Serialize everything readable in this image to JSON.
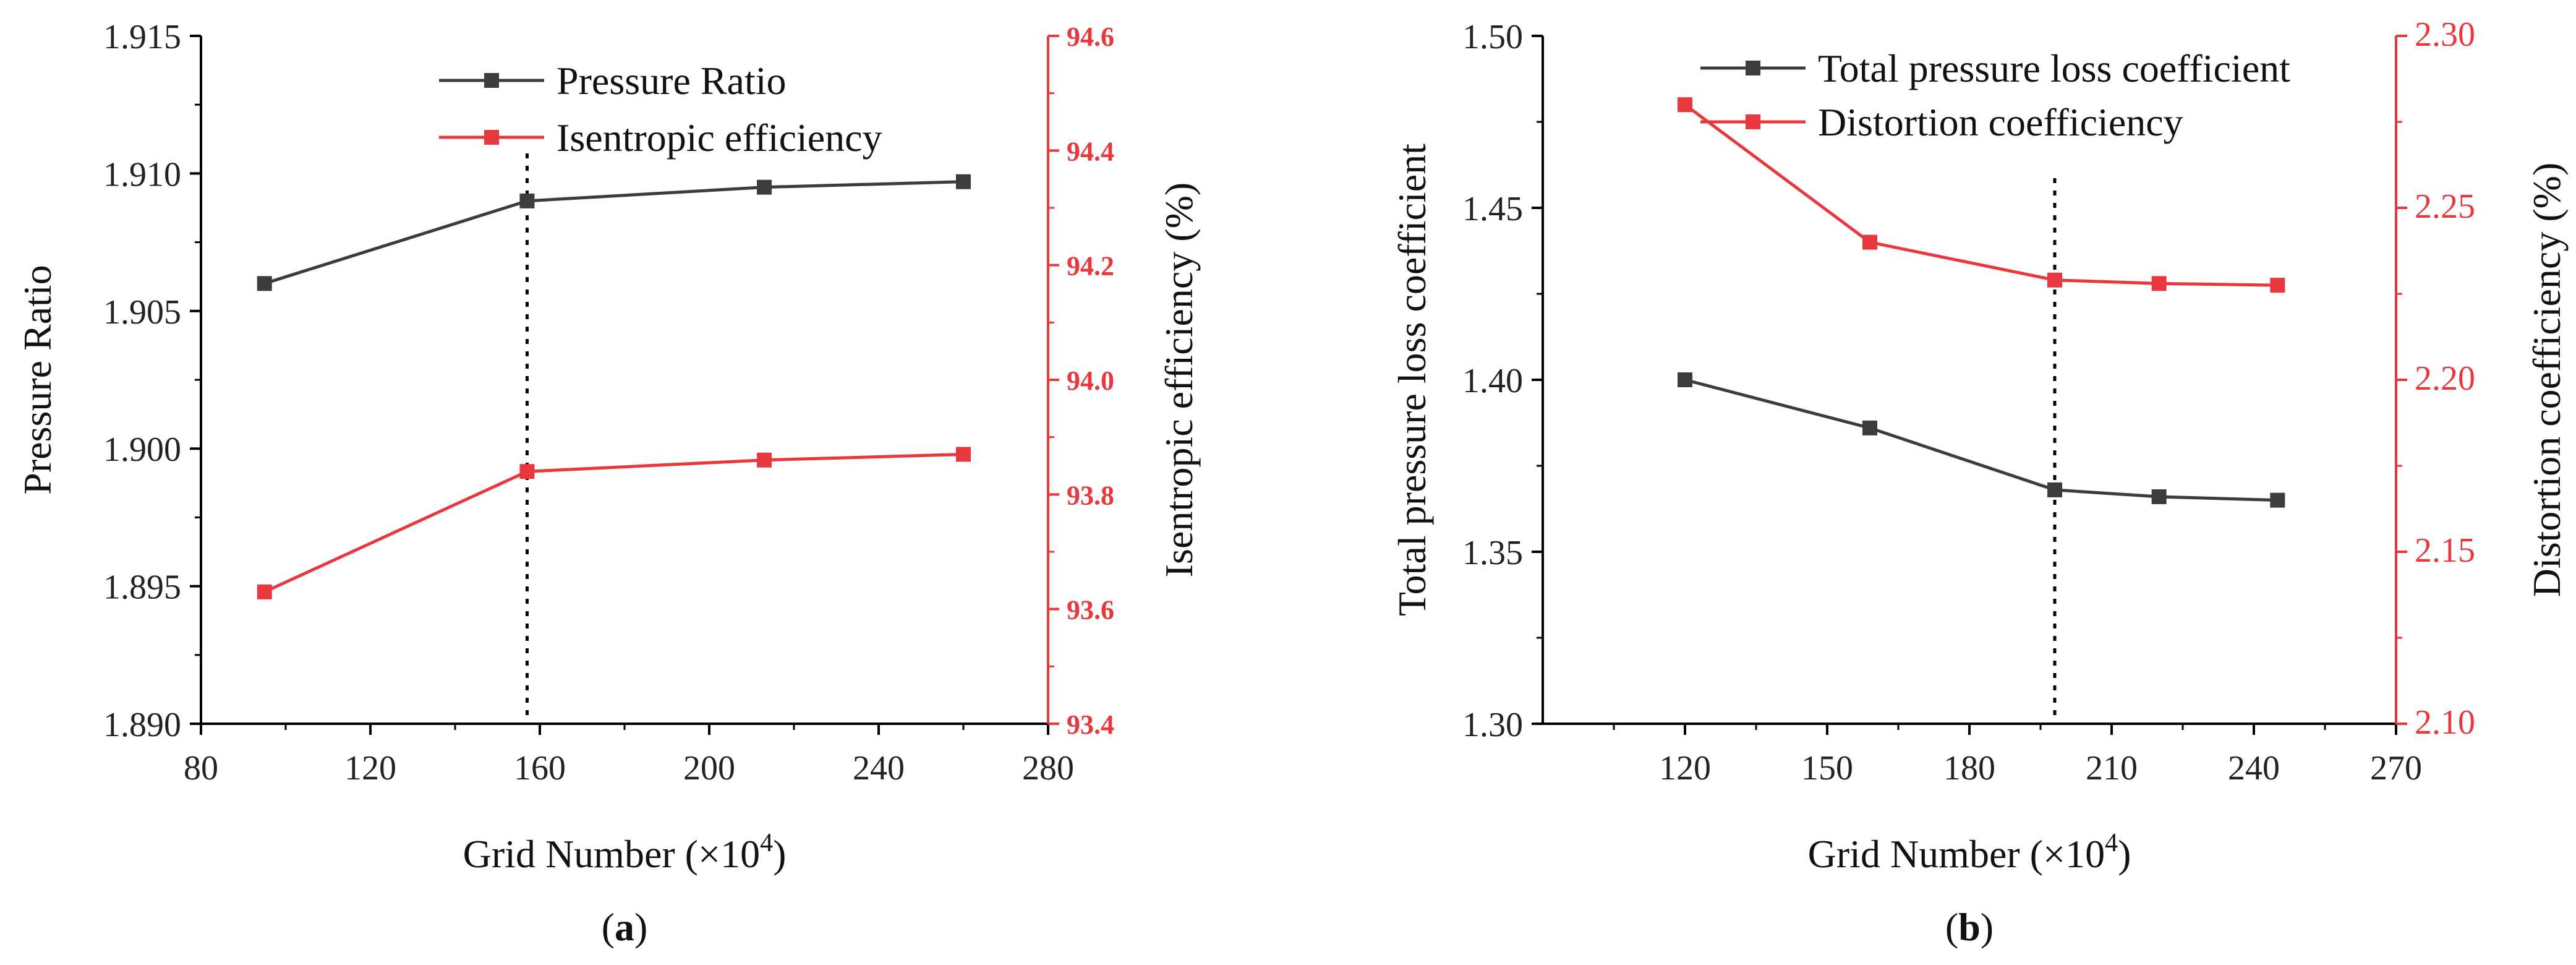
{
  "colors": {
    "black_series": "#3c3c3c",
    "red_series": "#e8383d",
    "axis": "#000000",
    "marker_line": "#000000"
  },
  "chart_data": [
    {
      "type": "line",
      "panel_label": "(a)",
      "panel_letter": "a",
      "xlabel_main": "Grid Number (×10",
      "xlabel_exp": "4",
      "xlabel_close": ")",
      "x_axis": {
        "min": 80,
        "max": 280,
        "ticks": [
          "80",
          "120",
          "160",
          "200",
          "240",
          "280"
        ]
      },
      "y_left": {
        "label": "Pressure Ratio",
        "min": 1.89,
        "max": 1.915,
        "ticks": [
          "1.890",
          "1.895",
          "1.900",
          "1.905",
          "1.910",
          "1.915"
        ]
      },
      "y_right": {
        "label": "Isentropic efficiency (%)",
        "min": 93.4,
        "max": 94.6,
        "ticks": [
          "93.4",
          "93.6",
          "93.8",
          "94.0",
          "94.2",
          "94.4",
          "94.6"
        ]
      },
      "vline_x": 157,
      "legend_position": "top-center",
      "series": [
        {
          "name": "Pressure Ratio",
          "axis": "left",
          "color": "#3c3c3c",
          "x": [
            95,
            157,
            213,
            260
          ],
          "y": [
            1.906,
            1.909,
            1.9095,
            1.9097
          ]
        },
        {
          "name": "Isentropic efficiency",
          "axis": "right",
          "color": "#e8383d",
          "x": [
            95,
            157,
            213,
            260
          ],
          "y": [
            93.63,
            93.84,
            93.86,
            93.87
          ]
        }
      ]
    },
    {
      "type": "line",
      "panel_label": "(b)",
      "panel_letter": "b",
      "xlabel_main": "Grid Number (×10",
      "xlabel_exp": "4",
      "xlabel_close": ")",
      "x_axis": {
        "min": 90,
        "max": 270,
        "ticks": [
          "120",
          "150",
          "180",
          "210",
          "240",
          "270"
        ]
      },
      "y_left": {
        "label": "Total pressure loss coefficient",
        "min": 1.3,
        "max": 1.5,
        "ticks": [
          "1.30",
          "1.35",
          "1.40",
          "1.45",
          "1.50"
        ]
      },
      "y_right": {
        "label": "Distortion  coefficiency (%)",
        "min": 2.1,
        "max": 2.3,
        "ticks": [
          "2.10",
          "2.15",
          "2.20",
          "2.25",
          "2.30"
        ]
      },
      "vline_x": 198,
      "legend_position": "top-center",
      "series": [
        {
          "name": "Total pressure loss coefficient",
          "axis": "left",
          "color": "#3c3c3c",
          "x": [
            120,
            159,
            198,
            220,
            245
          ],
          "y": [
            1.4,
            1.386,
            1.368,
            1.366,
            1.365
          ]
        },
        {
          "name": "Distortion  coefficiency",
          "axis": "right",
          "color": "#e8383d",
          "x": [
            120,
            159,
            198,
            220,
            245
          ],
          "y": [
            2.28,
            2.24,
            2.229,
            2.228,
            2.2275
          ]
        }
      ]
    }
  ]
}
